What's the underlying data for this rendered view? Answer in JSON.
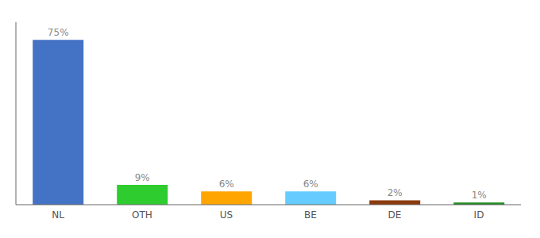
{
  "chart_data": {
    "type": "bar",
    "categories": [
      "NL",
      "OTH",
      "US",
      "BE",
      "DE",
      "ID"
    ],
    "values": [
      75,
      9,
      6,
      6,
      2,
      1
    ],
    "value_labels": [
      "75%",
      "9%",
      "6%",
      "6%",
      "2%",
      "1%"
    ],
    "colors": [
      "#4472C4",
      "#2ECC2E",
      "#FFA500",
      "#66CCFF",
      "#8B3A0F",
      "#228B22"
    ],
    "ylim": [
      0,
      83
    ],
    "data_labels": true,
    "tick_labels": "x",
    "grid": false
  }
}
